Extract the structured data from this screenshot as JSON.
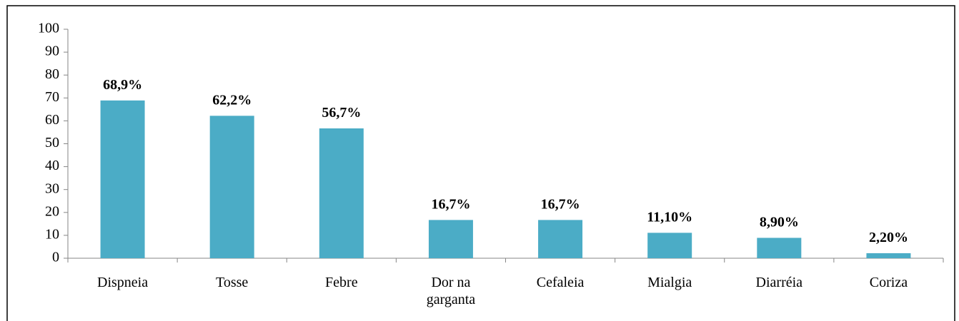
{
  "chart_data": {
    "type": "bar",
    "categories": [
      "Dispneia",
      "Tosse",
      "Febre",
      "Dor na garganta",
      "Cefaleia",
      "Mialgia",
      "Diarréia",
      "Coriza"
    ],
    "values": [
      68.9,
      62.2,
      56.7,
      16.7,
      16.7,
      11.1,
      8.9,
      2.2
    ],
    "value_labels": [
      "68,9%",
      "62,2%",
      "56,7%",
      "16,7%",
      "16,7%",
      "11,10%",
      "8,90%",
      "2,20%"
    ],
    "color": "#4bacc6",
    "ylim": [
      0,
      100
    ],
    "yticks": [
      0,
      10,
      20,
      30,
      40,
      50,
      60,
      70,
      80,
      90,
      100
    ],
    "grid": false
  }
}
